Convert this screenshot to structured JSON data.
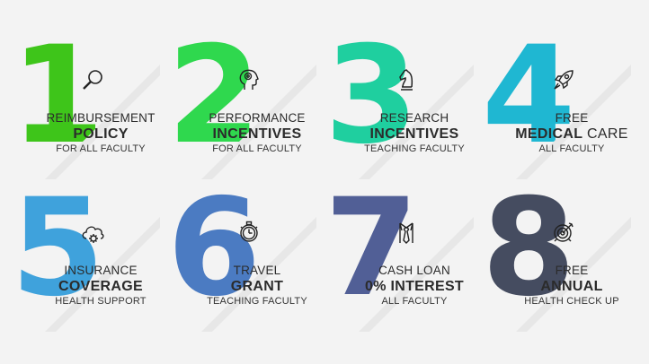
{
  "items": [
    {
      "number": "1",
      "color": "#3ec51a",
      "icon": "magnifier-icon",
      "line1": "REIMBURSEMENT",
      "line2_bold": "POLICY",
      "line2_light": "",
      "line3": "FOR ALL FACULTY"
    },
    {
      "number": "2",
      "color": "#2fd84e",
      "icon": "brain-head-icon",
      "line1": "PERFORMANCE",
      "line2_bold": "INCENTIVES",
      "line2_light": "",
      "line3": "FOR ALL FACULTY"
    },
    {
      "number": "3",
      "color": "#1fcf9f",
      "icon": "chess-knight-icon",
      "line1": "RESEARCH",
      "line2_bold": "INCENTIVES",
      "line2_light": "",
      "line3": "TEACHING FACULTY"
    },
    {
      "number": "4",
      "color": "#1fb7d2",
      "icon": "rocket-icon",
      "line1": "FREE",
      "line2_bold": "MEDICAL",
      "line2_light": " CARE",
      "line3": "ALL FACULTY"
    },
    {
      "number": "5",
      "color": "#3fa2dc",
      "icon": "cloud-gear-icon",
      "line1": "INSURANCE",
      "line2_bold": "COVERAGE",
      "line2_light": "",
      "line3": "HEALTH SUPPORT"
    },
    {
      "number": "6",
      "color": "#4b7bc2",
      "icon": "stopwatch-icon",
      "line1": "TRAVEL",
      "line2_bold": "GRANT",
      "line2_light": "",
      "line3": "TEACHING FACULTY"
    },
    {
      "number": "7",
      "color": "#515f96",
      "icon": "shirt-tie-icon",
      "line1": "CASH LOAN",
      "line2_bold": "0% INTEREST",
      "line2_light": "",
      "line3": "ALL FACULTY"
    },
    {
      "number": "8",
      "color": "#454c60",
      "icon": "target-icon",
      "line1": "FREE",
      "line2_bold": "ANNUAL",
      "line2_light": "",
      "line3": "HEALTH CHECK UP"
    }
  ]
}
